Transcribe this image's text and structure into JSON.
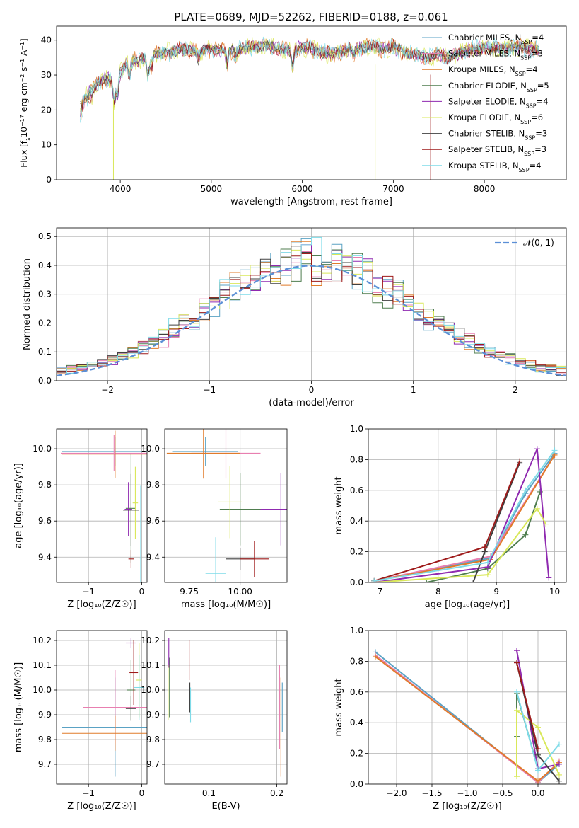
{
  "figure_title": "PLATE=0689, MJD=52262, FIBERID=0188, z=0.061",
  "colors": {
    "Chabrier MILES": "#5aa2c4",
    "Salpeter MILES": "#e87fb0",
    "Kroupa MILES": "#e07b2a",
    "Chabrier ELODIE": "#4f7d4f",
    "Salpeter ELODIE": "#8f2ab0",
    "Kroupa ELODIE": "#d9e85a",
    "Chabrier STELIB": "#404040",
    "Salpeter STELIB": "#9e1a1a",
    "Kroupa STELIB": "#7fdbe8",
    "gaussian": "#5b8fd6",
    "grid": "#b0b0b0"
  },
  "legend_spectrum": {
    "names": [
      "Chabrier MILES",
      "Salpeter MILES",
      "Kroupa MILES",
      "Chabrier ELODIE",
      "Salpeter ELODIE",
      "Kroupa ELODIE",
      "Chabrier STELIB",
      "Salpeter STELIB",
      "Kroupa STELIB"
    ],
    "nssp": [
      "4",
      "3",
      "4",
      "5",
      "4",
      "6",
      "3",
      "3",
      "4"
    ],
    "nssp_prefix": "N",
    "nssp_sub": "SSP"
  },
  "legend_hist": {
    "label": "𝒩(0, 1)"
  },
  "chart_data": [
    {
      "id": "spectrum",
      "type": "line",
      "xlabel": "wavelength [Angstrom, rest frame]",
      "ylabel_parts": [
        "Flux [f",
        "λ",
        "10",
        "−17",
        " erg cm",
        "−2",
        " s",
        "−1",
        " A",
        "−1",
        "]"
      ],
      "xlim": [
        3300,
        8900
      ],
      "ylim": [
        0,
        44
      ],
      "xticks": [
        4000,
        5000,
        6000,
        7000,
        8000
      ],
      "yticks": [
        0,
        10,
        20,
        30,
        40
      ],
      "continuum": [
        [
          3560,
          21
        ],
        [
          3620,
          25
        ],
        [
          3700,
          26
        ],
        [
          3780,
          28
        ],
        [
          3850,
          29
        ],
        [
          3930,
          28
        ],
        [
          4000,
          31
        ],
        [
          4100,
          34
        ],
        [
          4200,
          34
        ],
        [
          4300,
          35
        ],
        [
          4400,
          36
        ],
        [
          4500,
          36.5
        ],
        [
          4600,
          37
        ],
        [
          4700,
          37.5
        ],
        [
          4800,
          37
        ],
        [
          4900,
          37
        ],
        [
          5000,
          37.5
        ],
        [
          5100,
          37
        ],
        [
          5200,
          37
        ],
        [
          5300,
          37.5
        ],
        [
          5400,
          38
        ],
        [
          5500,
          38
        ],
        [
          5600,
          38.5
        ],
        [
          5700,
          38
        ],
        [
          5800,
          37
        ],
        [
          5900,
          37.5
        ],
        [
          6000,
          38
        ],
        [
          6100,
          37.5
        ],
        [
          6200,
          36.5
        ],
        [
          6300,
          36
        ],
        [
          6400,
          36.5
        ],
        [
          6500,
          37
        ],
        [
          6600,
          37.5
        ],
        [
          6700,
          38
        ],
        [
          6800,
          38
        ],
        [
          6900,
          37.5
        ],
        [
          7000,
          38
        ],
        [
          7100,
          37
        ],
        [
          7200,
          36
        ],
        [
          7300,
          35.5
        ],
        [
          7400,
          35
        ],
        [
          7500,
          36
        ],
        [
          7600,
          35
        ],
        [
          7700,
          36
        ],
        [
          7800,
          37
        ],
        [
          7900,
          37.5
        ],
        [
          8000,
          38
        ],
        [
          8100,
          38
        ],
        [
          8200,
          37.5
        ],
        [
          8300,
          38
        ],
        [
          8400,
          38
        ],
        [
          8500,
          37.5
        ],
        [
          8600,
          37
        ]
      ],
      "absorption_lines": [
        [
          3934,
          6
        ],
        [
          3969,
          6
        ],
        [
          4102,
          4
        ],
        [
          4304,
          5
        ],
        [
          4341,
          3
        ],
        [
          4861,
          3
        ],
        [
          5175,
          4
        ],
        [
          5270,
          2
        ],
        [
          5890,
          5
        ],
        [
          6563,
          2
        ]
      ],
      "drop_features": [
        [
          3925,
          0
        ],
        [
          6800,
          0
        ],
        [
          7410,
          0
        ]
      ]
    },
    {
      "id": "residual_hist",
      "type": "step",
      "xlabel": "(data-model)/error",
      "ylabel": "Normed distribution",
      "xlim": [
        -2.5,
        2.5
      ],
      "ylim": [
        0,
        0.53
      ],
      "xticks": [
        -2,
        -1,
        0,
        1,
        2
      ],
      "yticks": [
        0,
        0.1,
        0.2,
        0.3,
        0.4,
        0.5
      ],
      "bin_width": 0.1
    },
    {
      "id": "age_vs_Z",
      "type": "errorbar",
      "xlabel": "Z [log₁₀(Z/Z☉)]",
      "ylabel": "age  [log₁₀(age/yr)]",
      "xlim": [
        -1.6,
        0.1
      ],
      "ylim": [
        9.26,
        10.11
      ],
      "xticks": [
        -1,
        0
      ],
      "yticks": [
        9.4,
        9.6,
        9.8,
        10.0
      ],
      "series": [
        {
          "name": "Chabrier MILES",
          "x": -0.5,
          "xerr": 1.0,
          "y": 9.985,
          "yerr": 0.08
        },
        {
          "name": "Salpeter MILES",
          "x": -0.52,
          "xerr": 1.0,
          "y": 9.975,
          "yerr": 0.1
        },
        {
          "name": "Kroupa MILES",
          "x": -0.5,
          "xerr": 1.0,
          "y": 9.97,
          "yerr": 0.13
        },
        {
          "name": "Chabrier ELODIE",
          "x": -0.2,
          "xerr": 0.1,
          "y": 9.67,
          "yerr": 0.3
        },
        {
          "name": "Salpeter ELODIE",
          "x": -0.25,
          "xerr": 0.07,
          "y": 9.665,
          "yerr": 0.15
        },
        {
          "name": "Kroupa ELODIE",
          "x": -0.12,
          "xerr": 0.05,
          "y": 9.7,
          "yerr": 0.2
        },
        {
          "name": "Chabrier STELIB",
          "x": -0.2,
          "xerr": 0.15,
          "y": 9.66,
          "yerr": 0.2
        },
        {
          "name": "Salpeter STELIB",
          "x": -0.2,
          "xerr": 0.05,
          "y": 9.39,
          "yerr": 0.05
        },
        {
          "name": "Kroupa STELIB",
          "x": -0.02,
          "xerr": 0.03,
          "y": 9.395,
          "yerr": 0.4
        }
      ]
    },
    {
      "id": "age_vs_mass",
      "type": "errorbar",
      "xlabel": "mass [log₁₀(M/M☉)]",
      "xlim": [
        9.63,
        10.23
      ],
      "ylim": [
        9.26,
        10.11
      ],
      "xticks": [
        9.75,
        10.0
      ],
      "xticklabels": [
        "9.75",
        "10.00"
      ],
      "yticks": [
        9.4,
        9.6,
        9.8,
        10.0
      ],
      "series": [
        {
          "name": "Chabrier MILES",
          "x": 9.83,
          "xerr": 0.16,
          "y": 9.985,
          "yerr": 0.08
        },
        {
          "name": "Salpeter MILES",
          "x": 9.93,
          "xerr": 0.17,
          "y": 9.975,
          "yerr": 0.14
        },
        {
          "name": "Kroupa MILES",
          "x": 9.82,
          "xerr": 0.18,
          "y": 9.975,
          "yerr": 0.14
        },
        {
          "name": "Chabrier ELODIE",
          "x": 10.0,
          "xerr": 0.1,
          "y": 9.665,
          "yerr": 0.2
        },
        {
          "name": "Salpeter ELODIE",
          "x": 10.2,
          "xerr": 0.1,
          "y": 9.665,
          "yerr": 0.2
        },
        {
          "name": "Kroupa ELODIE",
          "x": 9.95,
          "xerr": 0.06,
          "y": 9.705,
          "yerr": 0.2
        },
        {
          "name": "Chabrier STELIB",
          "x": 10.0,
          "xerr": 0.07,
          "y": 9.39,
          "yerr": 0.06
        },
        {
          "name": "Salpeter STELIB",
          "x": 10.07,
          "xerr": 0.07,
          "y": 9.39,
          "yerr": 0.1
        },
        {
          "name": "Kroupa STELIB",
          "x": 9.88,
          "xerr": 0.05,
          "y": 9.31,
          "yerr": 0.2
        }
      ]
    },
    {
      "id": "massweight_vs_age",
      "type": "line",
      "xlabel": "age  [log₁₀(age/yr)]",
      "ylabel": "mass weight",
      "xlim": [
        6.8,
        10.2
      ],
      "ylim": [
        0,
        1
      ],
      "xticks": [
        7,
        8,
        9,
        10
      ],
      "yticks": [
        0,
        0.2,
        0.4,
        0.6,
        0.8,
        1.0
      ],
      "series": [
        {
          "name": "Chabrier MILES",
          "points": [
            [
              6.9,
              0.01
            ],
            [
              8.9,
              0.16
            ],
            [
              9.5,
              0.58
            ],
            [
              10.0,
              0.84
            ]
          ]
        },
        {
          "name": "Salpeter MILES",
          "points": [
            [
              6.9,
              0.01
            ],
            [
              8.9,
              0.17
            ],
            [
              10.0,
              0.83
            ]
          ]
        },
        {
          "name": "Kroupa MILES",
          "points": [
            [
              6.9,
              0.01
            ],
            [
              8.9,
              0.15
            ],
            [
              10.0,
              0.83
            ]
          ]
        },
        {
          "name": "Chabrier ELODIE",
          "points": [
            [
              7.8,
              0.0
            ],
            [
              8.85,
              0.09
            ],
            [
              9.5,
              0.31
            ],
            [
              9.75,
              0.59
            ]
          ]
        },
        {
          "name": "Salpeter ELODIE",
          "points": [
            [
              6.9,
              0.0
            ],
            [
              8.85,
              0.1
            ],
            [
              9.7,
              0.87
            ],
            [
              9.9,
              0.03
            ]
          ]
        },
        {
          "name": "Kroupa ELODIE",
          "points": [
            [
              6.9,
              0.0
            ],
            [
              8.85,
              0.05
            ],
            [
              9.7,
              0.48
            ],
            [
              9.85,
              0.38
            ]
          ]
        },
        {
          "name": "Chabrier STELIB",
          "points": [
            [
              8.6,
              0.0
            ],
            [
              8.8,
              0.2
            ],
            [
              9.4,
              0.78
            ]
          ]
        },
        {
          "name": "Salpeter STELIB",
          "points": [
            [
              6.9,
              0.01
            ],
            [
              8.8,
              0.23
            ],
            [
              9.4,
              0.79
            ]
          ]
        },
        {
          "name": "Kroupa STELIB",
          "points": [
            [
              6.9,
              0.01
            ],
            [
              8.85,
              0.13
            ],
            [
              9.5,
              0.6
            ],
            [
              10.0,
              0.86
            ]
          ]
        }
      ]
    },
    {
      "id": "mass_vs_Z",
      "type": "errorbar",
      "xlabel": "Z [log₁₀(Z/Z☉)]",
      "ylabel": "mass [log₁₀(M/M☉)]",
      "xlim": [
        -1.6,
        0.1
      ],
      "ylim": [
        9.62,
        10.24
      ],
      "xticks": [
        -1,
        0
      ],
      "yticks": [
        9.7,
        9.8,
        9.9,
        10.0,
        10.1,
        10.2
      ],
      "series": [
        {
          "name": "Chabrier MILES",
          "x": -0.5,
          "xerr": 1.0,
          "y": 9.85,
          "yerr": 0.2
        },
        {
          "name": "Salpeter MILES",
          "x": -0.5,
          "xerr": 0.6,
          "y": 9.93,
          "yerr": 0.15
        },
        {
          "name": "Kroupa MILES",
          "x": -0.5,
          "xerr": 1.0,
          "y": 9.825,
          "yerr": 0.07
        },
        {
          "name": "Chabrier ELODIE",
          "x": -0.2,
          "xerr": 0.08,
          "y": 10.0,
          "yerr": 0.12
        },
        {
          "name": "Salpeter ELODIE",
          "x": -0.2,
          "xerr": 0.1,
          "y": 10.19,
          "yerr": 0.02
        },
        {
          "name": "Kroupa ELODIE",
          "x": -0.05,
          "xerr": 0.05,
          "y": 10.04,
          "yerr": 0.15
        },
        {
          "name": "Chabrier STELIB",
          "x": -0.2,
          "xerr": 0.1,
          "y": 9.925,
          "yerr": 0.05
        },
        {
          "name": "Salpeter STELIB",
          "x": -0.15,
          "xerr": 0.08,
          "y": 10.07,
          "yerr": 0.13
        },
        {
          "name": "Kroupa STELIB",
          "x": -0.05,
          "xerr": 0.1,
          "y": 10.01,
          "yerr": 0.13
        }
      ]
    },
    {
      "id": "mass_vs_EBV",
      "type": "errorbar",
      "xlabel": "E(B-V)",
      "xlim": [
        0.035,
        0.215
      ],
      "ylim": [
        9.62,
        10.24
      ],
      "xticks": [
        0.1,
        0.2
      ],
      "yticks": [
        9.7,
        9.8,
        9.9,
        10.0,
        10.1,
        10.2
      ],
      "series": [
        {
          "name": "Chabrier MILES",
          "x": 0.208,
          "y": 9.93,
          "yerr": 0.1
        },
        {
          "name": "Salpeter MILES",
          "x": 0.204,
          "y": 9.93,
          "yerr": 0.17
        },
        {
          "name": "Kroupa MILES",
          "x": 0.206,
          "y": 9.85,
          "yerr": 0.2
        },
        {
          "name": "Chabrier ELODIE",
          "x": 0.042,
          "y": 10.01,
          "yerr": 0.12
        },
        {
          "name": "Salpeter ELODIE",
          "x": 0.041,
          "y": 10.15,
          "yerr": 0.06
        },
        {
          "name": "Kroupa ELODIE",
          "x": 0.04,
          "y": 9.99,
          "yerr": 0.11
        },
        {
          "name": "Chabrier STELIB",
          "x": 0.072,
          "y": 9.97,
          "yerr": 0.06
        },
        {
          "name": "Salpeter STELIB",
          "x": 0.071,
          "y": 10.12,
          "yerr": 0.08
        },
        {
          "name": "Kroupa STELIB",
          "x": 0.073,
          "y": 9.94,
          "yerr": 0.07
        }
      ]
    },
    {
      "id": "massweight_vs_Z",
      "type": "line",
      "xlabel": "Z [log₁₀(Z/Z☉)]",
      "ylabel": "mass weight",
      "xlim": [
        -2.4,
        0.4
      ],
      "ylim": [
        0,
        1
      ],
      "xticks": [
        -2.0,
        -1.5,
        -1.0,
        -0.5,
        0.0
      ],
      "xticklabels": [
        "−2.0",
        "−1.5",
        "−1.0",
        "−0.5",
        "0.0"
      ],
      "yticks": [
        0,
        0.2,
        0.4,
        0.6,
        0.8,
        1.0
      ],
      "series": [
        {
          "name": "Chabrier MILES",
          "points": [
            [
              -2.3,
              0.86
            ],
            [
              0.0,
              0.01
            ],
            [
              0.3,
              0.13
            ]
          ]
        },
        {
          "name": "Salpeter MILES",
          "points": [
            [
              -2.3,
              0.84
            ],
            [
              0.0,
              0.01
            ],
            [
              0.3,
              0.15
            ]
          ]
        },
        {
          "name": "Kroupa MILES",
          "points": [
            [
              -2.3,
              0.83
            ],
            [
              0.0,
              0.02
            ],
            [
              0.3,
              0.14
            ]
          ]
        },
        {
          "name": "Chabrier ELODIE",
          "points": [
            [
              -0.3,
              0.31
            ],
            [
              -0.3,
              0.59
            ],
            [
              0.0,
              0.1
            ]
          ]
        },
        {
          "name": "Salpeter ELODIE",
          "points": [
            [
              -0.3,
              0.87
            ],
            [
              0.0,
              0.1
            ],
            [
              0.3,
              0.13
            ]
          ]
        },
        {
          "name": "Kroupa ELODIE",
          "points": [
            [
              -0.3,
              0.05
            ],
            [
              -0.3,
              0.48
            ],
            [
              0.0,
              0.37
            ],
            [
              0.3,
              0.06
            ]
          ]
        },
        {
          "name": "Chabrier STELIB",
          "points": [
            [
              -0.3,
              0.79
            ],
            [
              0.0,
              0.19
            ],
            [
              0.3,
              0.02
            ]
          ]
        },
        {
          "name": "Salpeter STELIB",
          "points": [
            [
              -0.3,
              0.79
            ],
            [
              0.0,
              0.23
            ]
          ]
        },
        {
          "name": "Kroupa STELIB",
          "points": [
            [
              -0.3,
              0.6
            ],
            [
              0.0,
              0.09
            ],
            [
              0.3,
              0.26
            ]
          ]
        }
      ]
    }
  ]
}
